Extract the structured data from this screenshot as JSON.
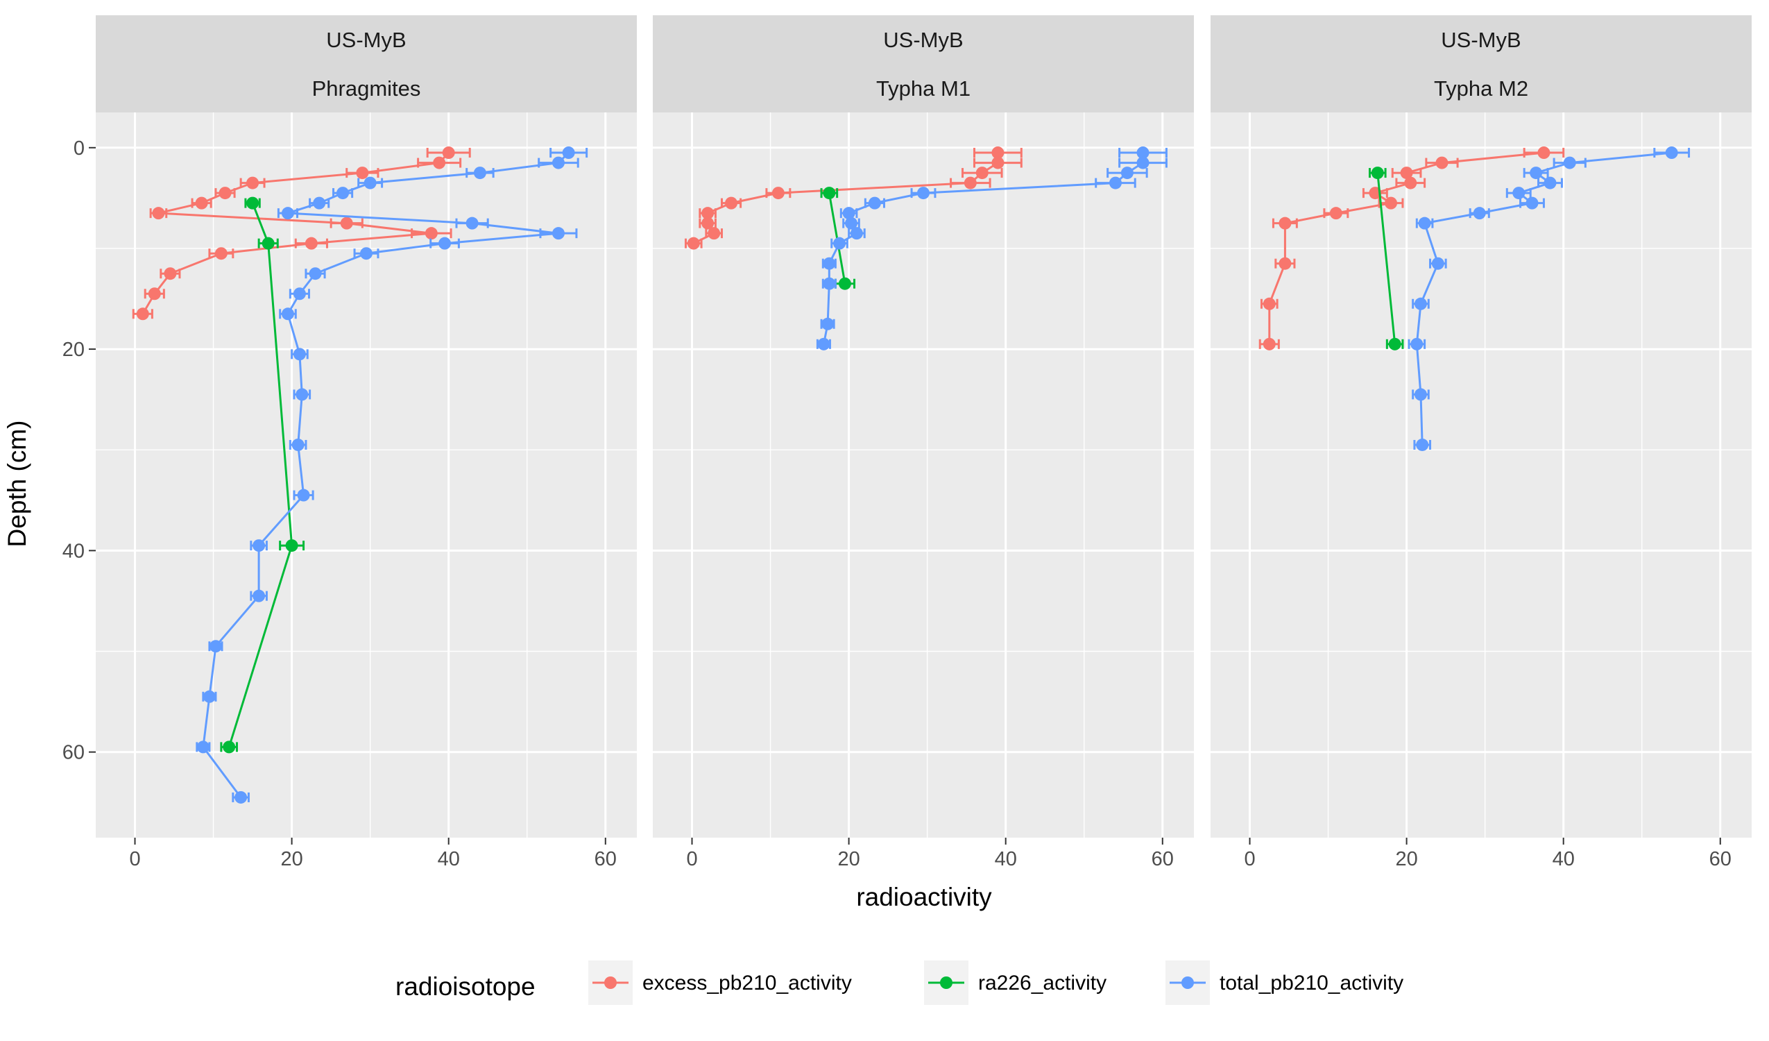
{
  "chart_data": {
    "type": "line",
    "xlabel": "radioactivity",
    "ylabel": "Depth (cm)",
    "xlim": [
      -5,
      64
    ],
    "ylim": [
      -3.5,
      68.5
    ],
    "y_reversed": true,
    "x_ticks": [
      0,
      20,
      40,
      60
    ],
    "y_ticks": [
      0,
      20,
      40,
      60
    ],
    "grid": true,
    "legend": {
      "title": "radioisotope",
      "position": "bottom"
    },
    "series_meta": [
      {
        "name": "excess_pb210_activity",
        "color": "#F8766D"
      },
      {
        "name": "ra226_activity",
        "color": "#00BA38"
      },
      {
        "name": "total_pb210_activity",
        "color": "#619CFF"
      }
    ],
    "panels": [
      {
        "strip_top": "US-MyB",
        "strip_bottom": "Phragmites",
        "series": [
          {
            "name": "excess_pb210_activity",
            "points": [
              {
                "x": 40.0,
                "y": 0.5,
                "err": 2.7
              },
              {
                "x": 38.8,
                "y": 1.5,
                "err": 2.7
              },
              {
                "x": 29.0,
                "y": 2.5,
                "err": 2.0
              },
              {
                "x": 15.0,
                "y": 3.5,
                "err": 1.5
              },
              {
                "x": 11.5,
                "y": 4.5,
                "err": 1.2
              },
              {
                "x": 8.5,
                "y": 5.5,
                "err": 1.2
              },
              {
                "x": 3.0,
                "y": 6.5,
                "err": 1.0
              },
              {
                "x": 27.0,
                "y": 7.5,
                "err": 2.0
              },
              {
                "x": 37.8,
                "y": 8.5,
                "err": 2.5
              },
              {
                "x": 22.5,
                "y": 9.5,
                "err": 2.0
              },
              {
                "x": 11.0,
                "y": 10.5,
                "err": 1.5
              },
              {
                "x": 4.5,
                "y": 12.5,
                "err": 1.2
              },
              {
                "x": 2.5,
                "y": 14.5,
                "err": 1.2
              },
              {
                "x": 1.0,
                "y": 16.5,
                "err": 1.2
              }
            ]
          },
          {
            "name": "ra226_activity",
            "points": [
              {
                "x": 15.0,
                "y": 5.5,
                "err": 0.9
              },
              {
                "x": 17.0,
                "y": 9.5,
                "err": 1.2
              },
              {
                "x": 20.0,
                "y": 39.5,
                "err": 1.5
              },
              {
                "x": 12.0,
                "y": 59.5,
                "err": 1.0
              }
            ]
          },
          {
            "name": "total_pb210_activity",
            "points": [
              {
                "x": 55.3,
                "y": 0.5,
                "err": 2.3
              },
              {
                "x": 54.0,
                "y": 1.5,
                "err": 2.5
              },
              {
                "x": 44.0,
                "y": 2.5,
                "err": 1.7
              },
              {
                "x": 30.0,
                "y": 3.5,
                "err": 1.5
              },
              {
                "x": 26.5,
                "y": 4.5,
                "err": 1.2
              },
              {
                "x": 23.5,
                "y": 5.5,
                "err": 1.2
              },
              {
                "x": 19.5,
                "y": 6.5,
                "err": 1.2
              },
              {
                "x": 43.0,
                "y": 7.5,
                "err": 2.0
              },
              {
                "x": 54.0,
                "y": 8.5,
                "err": 2.3
              },
              {
                "x": 39.5,
                "y": 9.5,
                "err": 1.8
              },
              {
                "x": 29.5,
                "y": 10.5,
                "err": 1.5
              },
              {
                "x": 23.0,
                "y": 12.5,
                "err": 1.2
              },
              {
                "x": 21.0,
                "y": 14.5,
                "err": 1.2
              },
              {
                "x": 19.5,
                "y": 16.5,
                "err": 1.0
              },
              {
                "x": 21.0,
                "y": 20.5,
                "err": 1.0
              },
              {
                "x": 21.3,
                "y": 24.5,
                "err": 1.0
              },
              {
                "x": 20.8,
                "y": 29.5,
                "err": 1.0
              },
              {
                "x": 21.5,
                "y": 34.5,
                "err": 1.2
              },
              {
                "x": 15.8,
                "y": 39.5,
                "err": 1.0
              },
              {
                "x": 15.8,
                "y": 44.5,
                "err": 1.0
              },
              {
                "x": 10.3,
                "y": 49.5,
                "err": 0.8
              },
              {
                "x": 9.5,
                "y": 54.5,
                "err": 0.8
              },
              {
                "x": 8.7,
                "y": 59.5,
                "err": 0.8
              },
              {
                "x": 13.5,
                "y": 64.5,
                "err": 1.0
              }
            ]
          }
        ]
      },
      {
        "strip_top": "US-MyB",
        "strip_bottom": "Typha M1",
        "series": [
          {
            "name": "excess_pb210_activity",
            "points": [
              {
                "x": 39.0,
                "y": 0.5,
                "err": 3.0
              },
              {
                "x": 39.0,
                "y": 1.5,
                "err": 3.0
              },
              {
                "x": 37.0,
                "y": 2.5,
                "err": 2.5
              },
              {
                "x": 35.5,
                "y": 3.5,
                "err": 2.5
              },
              {
                "x": 11.0,
                "y": 4.5,
                "err": 1.5
              },
              {
                "x": 5.0,
                "y": 5.5,
                "err": 1.2
              },
              {
                "x": 2.0,
                "y": 6.5,
                "err": 1.0
              },
              {
                "x": 2.0,
                "y": 7.5,
                "err": 1.0
              },
              {
                "x": 2.8,
                "y": 8.5,
                "err": 1.0
              },
              {
                "x": 0.2,
                "y": 9.5,
                "err": 1.0
              }
            ]
          },
          {
            "name": "ra226_activity",
            "points": [
              {
                "x": 17.5,
                "y": 4.5,
                "err": 1.0
              },
              {
                "x": 19.5,
                "y": 13.5,
                "err": 1.2
              }
            ]
          },
          {
            "name": "total_pb210_activity",
            "points": [
              {
                "x": 57.5,
                "y": 0.5,
                "err": 3.0
              },
              {
                "x": 57.5,
                "y": 1.5,
                "err": 3.0
              },
              {
                "x": 55.5,
                "y": 2.5,
                "err": 2.5
              },
              {
                "x": 54.0,
                "y": 3.5,
                "err": 2.5
              },
              {
                "x": 29.5,
                "y": 4.5,
                "err": 1.5
              },
              {
                "x": 23.3,
                "y": 5.5,
                "err": 1.2
              },
              {
                "x": 20.0,
                "y": 6.5,
                "err": 1.0
              },
              {
                "x": 20.3,
                "y": 7.5,
                "err": 1.0
              },
              {
                "x": 21.0,
                "y": 8.5,
                "err": 1.0
              },
              {
                "x": 18.8,
                "y": 9.5,
                "err": 1.0
              },
              {
                "x": 17.5,
                "y": 11.5,
                "err": 0.8
              },
              {
                "x": 17.5,
                "y": 13.5,
                "err": 0.8
              },
              {
                "x": 17.3,
                "y": 17.5,
                "err": 0.8
              },
              {
                "x": 16.8,
                "y": 19.5,
                "err": 0.8
              }
            ]
          }
        ]
      },
      {
        "strip_top": "US-MyB",
        "strip_bottom": "Typha M2",
        "series": [
          {
            "name": "excess_pb210_activity",
            "points": [
              {
                "x": 37.5,
                "y": 0.5,
                "err": 2.5
              },
              {
                "x": 24.5,
                "y": 1.5,
                "err": 2.0
              },
              {
                "x": 20.0,
                "y": 2.5,
                "err": 1.8
              },
              {
                "x": 20.5,
                "y": 3.5,
                "err": 1.8
              },
              {
                "x": 16.0,
                "y": 4.5,
                "err": 1.5
              },
              {
                "x": 18.0,
                "y": 5.5,
                "err": 1.5
              },
              {
                "x": 11.0,
                "y": 6.5,
                "err": 1.5
              },
              {
                "x": 4.5,
                "y": 7.5,
                "err": 1.5
              },
              {
                "x": 4.5,
                "y": 11.5,
                "err": 1.2
              },
              {
                "x": 2.5,
                "y": 15.5,
                "err": 1.0
              },
              {
                "x": 2.5,
                "y": 19.5,
                "err": 1.2
              }
            ]
          },
          {
            "name": "ra226_activity",
            "points": [
              {
                "x": 16.3,
                "y": 2.5,
                "err": 1.0
              },
              {
                "x": 18.5,
                "y": 19.5,
                "err": 1.0
              }
            ]
          },
          {
            "name": "total_pb210_activity",
            "points": [
              {
                "x": 53.8,
                "y": 0.5,
                "err": 2.2
              },
              {
                "x": 40.8,
                "y": 1.5,
                "err": 2.0
              },
              {
                "x": 36.5,
                "y": 2.5,
                "err": 1.5
              },
              {
                "x": 38.3,
                "y": 3.5,
                "err": 1.5
              },
              {
                "x": 34.3,
                "y": 4.5,
                "err": 1.5
              },
              {
                "x": 36.0,
                "y": 5.5,
                "err": 1.5
              },
              {
                "x": 29.3,
                "y": 6.5,
                "err": 1.2
              },
              {
                "x": 22.3,
                "y": 7.5,
                "err": 1.0
              },
              {
                "x": 24.0,
                "y": 11.5,
                "err": 1.0
              },
              {
                "x": 21.8,
                "y": 15.5,
                "err": 1.0
              },
              {
                "x": 21.3,
                "y": 19.5,
                "err": 1.0
              },
              {
                "x": 21.8,
                "y": 24.5,
                "err": 1.0
              },
              {
                "x": 22.0,
                "y": 29.5,
                "err": 1.0
              }
            ]
          }
        ]
      }
    ]
  }
}
